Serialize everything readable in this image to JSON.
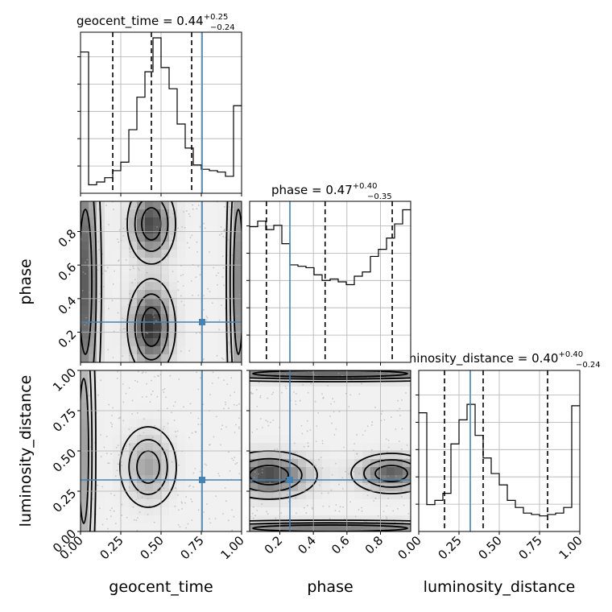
{
  "parameters": [
    "geocent_time",
    "phase",
    "luminosity_distance"
  ],
  "colors": {
    "truth": "#4682b4",
    "hist": "#000000",
    "quantile": "#000000",
    "grid": "#b0b0b0"
  },
  "titles": [
    {
      "name": "geocent_time",
      "value": "0.44",
      "plus": "+0.25",
      "minus": "−0.24"
    },
    {
      "name": "phase",
      "value": "0.47",
      "plus": "+0.40",
      "minus": "−0.35"
    },
    {
      "name": "luminosity_distance",
      "value": "0.40",
      "plus": "+0.40",
      "minus": "−0.24"
    }
  ],
  "chart_data": {
    "type": "corner",
    "parameters": [
      "geocent_time",
      "phase",
      "luminosity_distance"
    ],
    "ranges": [
      [
        0,
        1
      ],
      [
        0.02,
        0.98
      ],
      [
        0,
        1
      ]
    ],
    "truths": [
      0.755,
      0.26,
      0.32
    ],
    "quantiles": [
      [
        0.2,
        0.44,
        0.69
      ],
      [
        0.12,
        0.47,
        0.87
      ],
      [
        0.16,
        0.4,
        0.8
      ]
    ],
    "histograms": [
      {
        "bins": 20,
        "counts": [
          1.0,
          0.06,
          0.08,
          0.11,
          0.16,
          0.22,
          0.45,
          0.68,
          0.86,
          1.1,
          0.89,
          0.74,
          0.49,
          0.32,
          0.2,
          0.17,
          0.16,
          0.15,
          0.12,
          0.62
        ]
      },
      {
        "bins": 20,
        "counts": [
          0.96,
          1.0,
          0.94,
          0.97,
          0.84,
          0.69,
          0.68,
          0.67,
          0.62,
          0.58,
          0.59,
          0.57,
          0.55,
          0.61,
          0.64,
          0.75,
          0.8,
          0.88,
          0.98,
          1.08
        ]
      },
      {
        "bins": 20,
        "counts": [
          0.84,
          0.19,
          0.22,
          0.27,
          0.62,
          0.79,
          0.9,
          0.68,
          0.52,
          0.41,
          0.33,
          0.22,
          0.17,
          0.13,
          0.12,
          0.11,
          0.12,
          0.13,
          0.17,
          0.89
        ]
      }
    ],
    "hist_ylim": [
      0,
      1.14
    ],
    "ticks": {
      "geocent_time": [
        "0.00",
        "0.25",
        "0.50",
        "0.75",
        "1.00"
      ],
      "phase": [
        "0.2",
        "0.4",
        "0.6",
        "0.8"
      ],
      "luminosity_distance": [
        "0.00",
        "0.25",
        "0.50",
        "0.75",
        "1.00"
      ]
    },
    "tick_values": {
      "geocent_time": [
        0,
        0.25,
        0.5,
        0.75,
        1.0
      ],
      "phase": [
        0.2,
        0.4,
        0.6,
        0.8
      ],
      "luminosity_distance": [
        0,
        0.25,
        0.5,
        0.75,
        1.0
      ]
    },
    "xlabels": [
      "geocent_time",
      "phase",
      "luminosity_distance"
    ],
    "ylabels": [
      "",
      "phase",
      "luminosity_distance"
    ],
    "grid": true,
    "densities": {
      "phase_vs_geocent_time": {
        "levels": [
          {
            "cx": 0.44,
            "cy": 0.22,
            "rx": 0.06,
            "ry": 0.12,
            "fill": 0.85
          },
          {
            "cx": 0.44,
            "cy": 0.86,
            "rx": 0.06,
            "ry": 0.1,
            "fill": 0.75
          },
          {
            "cx": 0.03,
            "cy": 0.5,
            "rx": 0.04,
            "ry": 0.45,
            "fill": 0.65
          },
          {
            "cx": 0.98,
            "cy": 0.5,
            "rx": 0.03,
            "ry": 0.45,
            "fill": 0.45
          }
        ]
      },
      "ld_vs_geocent_time": {
        "levels": [
          {
            "cx": 0.42,
            "cy": 0.4,
            "rx": 0.07,
            "ry": 0.1,
            "fill": 0.35
          },
          {
            "cx": 0.02,
            "cy": 0.5,
            "rx": 0.03,
            "ry": 0.45,
            "fill": 0.35
          }
        ]
      },
      "ld_vs_phase": {
        "levels": [
          {
            "cx": 0.12,
            "cy": 0.35,
            "rx": 0.12,
            "ry": 0.06,
            "fill": 0.75
          },
          {
            "cx": 0.88,
            "cy": 0.36,
            "rx": 0.1,
            "ry": 0.05,
            "fill": 0.65
          },
          {
            "cx": 0.5,
            "cy": 0.98,
            "rx": 0.48,
            "ry": 0.02,
            "fill": 0.6
          },
          {
            "cx": 0.5,
            "cy": 0.02,
            "rx": 0.48,
            "ry": 0.02,
            "fill": 0.5
          }
        ]
      }
    }
  }
}
